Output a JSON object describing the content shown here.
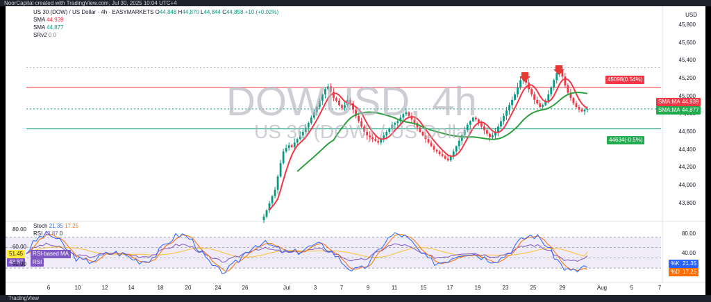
{
  "app": {
    "top_caption": "NoorCapital created with TradingView.com, Jul 30, 2025 10:04 UTC+4",
    "footer_brand": "TradingView"
  },
  "legend": {
    "symbol": "US 30 (DOW) / US Dollar · 4h · EASYMARKETS",
    "o_label": "O",
    "o": "44,848",
    "h_label": "H",
    "h": "44,870",
    "l_label": "L",
    "l": "44,844",
    "c_label": "C",
    "c": "44,858",
    "change": "+10 (+0.02%)",
    "sma1_label": "SMA",
    "sma1": "44,939",
    "sma2_label": "SMA",
    "sma2": "44,877",
    "srv2_label": "SRv2",
    "srv2": "0  0"
  },
  "watermark": {
    "big": "DOWUSD, 4h",
    "small": "US 30 (DOW) / US Dollar"
  },
  "price_axis": {
    "currency": "USD",
    "ticks": [
      "45,800",
      "45,600",
      "45,400",
      "45,200",
      "45,000",
      "44,800",
      "44,600",
      "44,400",
      "44,200",
      "44,000",
      "43,800"
    ]
  },
  "tags": {
    "resistance": "45098(0.54%)",
    "support": "44634(-0.5%)",
    "sma_a_label": "SMA:MA",
    "sma_a_value": "44,939",
    "sma_b_label": "SMA:MA",
    "sma_b_value": "44,877"
  },
  "oscillator": {
    "stoch_label": "Stoch",
    "stoch_k": "21.35",
    "stoch_d": "17.25",
    "rsi_label": "RSI",
    "rsi_value": "43.87",
    "rsi_ma_value": "51.45",
    "rsi_ma_label": "RSI-based MA",
    "extra": "0",
    "ticks": [
      "80.00",
      "60.00",
      "40.00"
    ],
    "right_ticks": [
      "80.00",
      "40.00"
    ],
    "k_label": "%K",
    "k_value": "21.35",
    "d_label": "%D",
    "d_value": "17.25"
  },
  "time_axis": [
    "6",
    "10",
    "12",
    "14",
    "18",
    "20",
    "24",
    "26",
    "Jul",
    "3",
    "7",
    "9",
    "11",
    "15",
    "17",
    "19",
    "23",
    "25",
    "29",
    "Aug",
    "5",
    "7"
  ],
  "colors": {
    "up": "#089981",
    "down": "#f23645",
    "sma_fast": "#f23645",
    "sma_slow": "#2e9e3f",
    "resistance": "#f23645",
    "support": "#089981",
    "rsi": "#7e57c2",
    "stoch_k": "#2962ff",
    "stoch_d": "#ff6d00"
  },
  "chart_data": {
    "type": "candlestick",
    "title": "US 30 (DOW) / US Dollar · 4h · EASYMARKETS",
    "ylabel": "USD",
    "ylim": [
      43650,
      45900
    ],
    "levels": {
      "resistance": 45098,
      "support": 44634
    },
    "sma_fast_last": 44939,
    "sma_slow_last": 44877,
    "last_close": 44858,
    "closes": [
      43650,
      43720,
      43800,
      43880,
      43950,
      44100,
      44250,
      44380,
      44420,
      44450,
      44430,
      44480,
      44520,
      44560,
      44600,
      44650,
      44700,
      44760,
      44820,
      44880,
      44950,
      45020,
      45080,
      45110,
      45050,
      44980,
      44950,
      44900,
      44870,
      44900,
      44960,
      44920,
      44850,
      44780,
      44720,
      44660,
      44600,
      44560,
      44540,
      44520,
      44500,
      44480,
      44520,
      44560,
      44600,
      44640,
      44680,
      44700,
      44720,
      44760,
      44800,
      44820,
      44780,
      44740,
      44700,
      44650,
      44600,
      44560,
      44520,
      44480,
      44440,
      44400,
      44380,
      44350,
      44330,
      44300,
      44280,
      44320,
      44380,
      44440,
      44500,
      44560,
      44620,
      44680,
      44720,
      44760,
      44740,
      44700,
      44660,
      44620,
      44580,
      44540,
      44560,
      44600,
      44660,
      44720,
      44780,
      44840,
      44900,
      44960,
      45020,
      45100,
      45180,
      45220,
      45150,
      45080,
      45020,
      44960,
      44920,
      44880,
      44900,
      44950,
      45020,
      45100,
      45180,
      45260,
      45300,
      45220,
      45120,
      45040,
      44980,
      44920,
      44880,
      44850,
      44830,
      44850,
      44858
    ],
    "highlights": [
      "arrow-down near 45,200 (Jul 24)",
      "arrow-down near 45,300 (Jul 28)"
    ],
    "oscillator": {
      "stoch_k_last": 21.35,
      "stoch_d_last": 17.25,
      "rsi_last": 43.87,
      "rsi_ma_last": 51.45,
      "bands": [
        80,
        60,
        40,
        20
      ]
    }
  }
}
